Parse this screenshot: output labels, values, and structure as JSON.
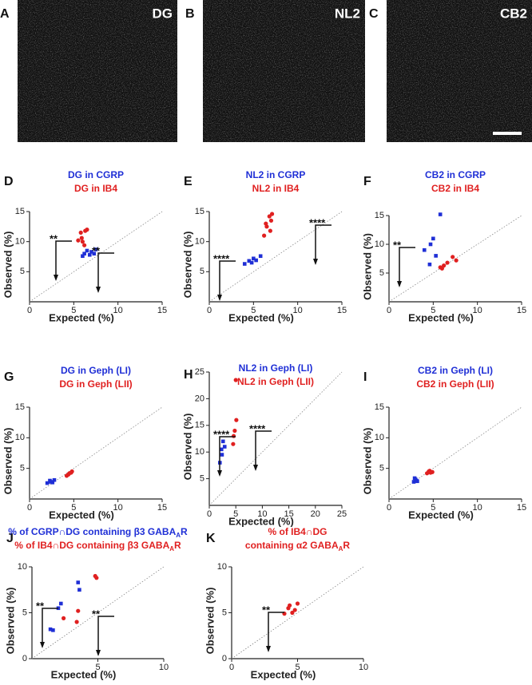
{
  "images": [
    {
      "panel": "A",
      "label": "DG"
    },
    {
      "panel": "B",
      "label": "NL2"
    },
    {
      "panel": "C",
      "label": "CB2"
    }
  ],
  "chart_data": [
    {
      "type": "scatter",
      "panel": "D",
      "title_lines": [
        {
          "text": "DG in CGRP",
          "color": "#1f2fd6"
        },
        {
          "text": "DG in IB4",
          "color": "#e02020"
        }
      ],
      "xlabel": "Expected (%)",
      "ylabel": "Observed (%)",
      "xlim": [
        0,
        15
      ],
      "ylim": [
        0,
        15
      ],
      "xticks": [
        0,
        5,
        10,
        15
      ],
      "yticks": [
        5,
        10,
        15
      ],
      "series": [
        {
          "color": "#1f2fd6",
          "x": [
            6.2,
            6.5,
            6.8,
            7.0,
            7.3,
            6.0,
            7.5
          ],
          "values": [
            8.0,
            8.5,
            7.8,
            8.3,
            8.0,
            7.6,
            8.7
          ]
        },
        {
          "color": "#e02020",
          "x": [
            5.5,
            5.8,
            6.0,
            6.3,
            6.5,
            6.2,
            5.9
          ],
          "values": [
            10.2,
            11.5,
            10.0,
            11.8,
            12.0,
            9.4,
            10.6
          ]
        }
      ],
      "annotations": [
        "**",
        "**"
      ]
    },
    {
      "type": "scatter",
      "panel": "E",
      "title_lines": [
        {
          "text": "NL2 in CGRP",
          "color": "#1f2fd6"
        },
        {
          "text": "NL2 in IB4",
          "color": "#e02020"
        }
      ],
      "xlabel": "Expected (%)",
      "ylabel": "Observed (%)",
      "xlim": [
        0,
        15
      ],
      "ylim": [
        0,
        15
      ],
      "xticks": [
        0,
        5,
        10,
        15
      ],
      "yticks": [
        5,
        10,
        15
      ],
      "series": [
        {
          "color": "#1f2fd6",
          "x": [
            4.0,
            4.5,
            5.0,
            5.3,
            5.8,
            4.8
          ],
          "values": [
            6.3,
            6.8,
            7.2,
            6.9,
            7.6,
            6.5
          ]
        },
        {
          "color": "#e02020",
          "x": [
            6.2,
            6.5,
            6.8,
            7.0,
            6.4,
            6.9,
            7.1
          ],
          "values": [
            11.0,
            12.5,
            14.2,
            13.5,
            13.0,
            11.8,
            14.6
          ]
        }
      ],
      "annotations": [
        "****",
        "****"
      ]
    },
    {
      "type": "scatter",
      "panel": "F",
      "title_lines": [
        {
          "text": "CB2 in CGRP",
          "color": "#1f2fd6"
        },
        {
          "text": "CB2  in IB4",
          "color": "#e02020"
        }
      ],
      "xlabel": "Expected (%)",
      "ylabel": "Observed (%)",
      "xlim": [
        0,
        15
      ],
      "ylim": [
        0,
        15
      ],
      "xticks": [
        0,
        5,
        10,
        15
      ],
      "yticks": [
        5,
        10,
        15
      ],
      "series": [
        {
          "color": "#1f2fd6",
          "x": [
            4.0,
            4.6,
            5.0,
            5.3,
            5.8,
            4.7
          ],
          "values": [
            9.0,
            6.5,
            11.0,
            8.0,
            15.2,
            10.0
          ]
        },
        {
          "color": "#e02020",
          "x": [
            5.8,
            6.2,
            6.6,
            7.2,
            7.6,
            6.0
          ],
          "values": [
            6.0,
            6.3,
            6.8,
            7.8,
            7.2,
            5.8
          ]
        }
      ],
      "annotations": [
        "**"
      ]
    },
    {
      "type": "scatter",
      "panel": "G",
      "title_lines": [
        {
          "text": "DG in Geph (LI)",
          "color": "#1f2fd6"
        },
        {
          "text": "DG in Geph (LII)",
          "color": "#e02020"
        }
      ],
      "xlabel": "Expected (%)",
      "ylabel": "Observed (%)",
      "xlim": [
        0,
        15
      ],
      "ylim": [
        0,
        15
      ],
      "xticks": [
        0,
        5,
        10,
        15
      ],
      "yticks": [
        5,
        10,
        15
      ],
      "series": [
        {
          "color": "#1f2fd6",
          "x": [
            2.0,
            2.3,
            2.6,
            2.8,
            2.4
          ],
          "values": [
            2.6,
            3.0,
            2.7,
            3.1,
            2.8
          ]
        },
        {
          "color": "#e02020",
          "x": [
            4.2,
            4.5,
            4.8,
            4.4,
            4.7
          ],
          "values": [
            3.8,
            4.2,
            4.5,
            4.0,
            4.3
          ]
        }
      ],
      "annotations": []
    },
    {
      "type": "scatter",
      "panel": "H",
      "title_lines": [
        {
          "text": "NL2 in Geph (LI)",
          "color": "#1f2fd6"
        },
        {
          "text": "NL2 in Geph (LII)",
          "color": "#e02020"
        }
      ],
      "xlabel": "Expected (%)",
      "ylabel": "Observed (%)",
      "xlim": [
        0,
        25
      ],
      "ylim": [
        0,
        25
      ],
      "xticks": [
        0,
        5,
        10,
        15,
        20,
        25
      ],
      "yticks": [
        5,
        10,
        15,
        20,
        25
      ],
      "series": [
        {
          "color": "#1f2fd6",
          "x": [
            2.0,
            2.3,
            2.6,
            2.9,
            2.4
          ],
          "values": [
            8.0,
            10.5,
            12.0,
            11.0,
            9.5
          ]
        },
        {
          "color": "#e02020",
          "x": [
            4.5,
            4.8,
            5.0,
            4.6,
            5.1
          ],
          "values": [
            11.5,
            14.0,
            23.5,
            13.0,
            16.0
          ]
        }
      ],
      "annotations": [
        "****",
        "****"
      ]
    },
    {
      "type": "scatter",
      "panel": "I",
      "title_lines": [
        {
          "text": "CB2 in Geph (LI)",
          "color": "#1f2fd6"
        },
        {
          "text": "CB2 in Geph (LII)",
          "color": "#e02020"
        }
      ],
      "xlabel": "Expected (%)",
      "ylabel": "Observed (%)",
      "xlim": [
        0,
        15
      ],
      "ylim": [
        0,
        15
      ],
      "xticks": [
        0,
        5,
        10,
        15
      ],
      "yticks": [
        5,
        10,
        15
      ],
      "series": [
        {
          "color": "#1f2fd6",
          "x": [
            2.8,
            3.0,
            3.1,
            2.9,
            3.2
          ],
          "values": [
            2.8,
            3.2,
            3.0,
            3.4,
            2.9
          ]
        },
        {
          "color": "#e02020",
          "x": [
            4.3,
            4.5,
            4.7,
            4.9,
            4.6
          ],
          "values": [
            4.2,
            4.5,
            4.3,
            4.4,
            4.6
          ]
        }
      ],
      "annotations": []
    },
    {
      "type": "scatter",
      "panel": "J",
      "title_lines": [
        {
          "text": "% of CGRP∩DG containing β3 GABA",
          "sub": "A",
          "end": "R",
          "color": "#1f2fd6"
        },
        {
          "text": "% of IB4∩DG containing β3 GABA",
          "sub": "A",
          "end": "R",
          "color": "#e02020"
        }
      ],
      "xlabel": "Expected (%)",
      "ylabel": "Observed (%)",
      "xlim": [
        0,
        10
      ],
      "ylim": [
        0,
        10
      ],
      "xticks": [
        5,
        10
      ],
      "yticks": [
        0,
        5,
        10
      ],
      "series": [
        {
          "color": "#1f2fd6",
          "x": [
            1.4,
            1.6,
            2.0,
            2.2,
            3.5,
            3.6
          ],
          "values": [
            3.2,
            3.1,
            5.5,
            6.0,
            8.3,
            7.5
          ]
        },
        {
          "color": "#e02020",
          "x": [
            2.4,
            3.4,
            3.5,
            4.8,
            4.9
          ],
          "values": [
            4.4,
            4.0,
            5.2,
            9.0,
            8.8
          ]
        }
      ],
      "annotations": [
        "**",
        "**"
      ]
    },
    {
      "type": "scatter",
      "panel": "K",
      "title_lines": [
        {
          "text": "% of IB4∩DG",
          "color": "#e02020"
        },
        {
          "text": "containing α2 GABA",
          "sub": "A",
          "end": "R",
          "color": "#e02020"
        }
      ],
      "xlabel": "Expected (%)",
      "ylabel": "Observed (%)",
      "xlim": [
        0,
        10
      ],
      "ylim": [
        0,
        10
      ],
      "xticks": [
        0,
        5,
        10
      ],
      "yticks": [
        0,
        5,
        10
      ],
      "series": [
        {
          "color": "#e02020",
          "x": [
            4.0,
            4.3,
            4.6,
            4.8,
            5.0,
            4.4
          ],
          "values": [
            4.9,
            5.5,
            5.0,
            5.3,
            6.0,
            5.8
          ]
        }
      ],
      "annotations": [
        "**"
      ]
    }
  ]
}
